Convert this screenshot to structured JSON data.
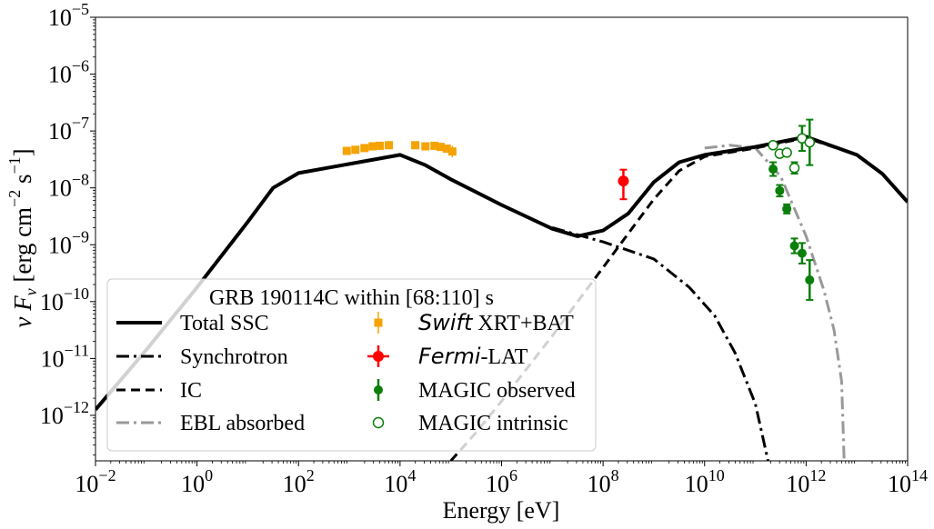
{
  "chart_data": {
    "type": "line",
    "title": "",
    "xlabel": "Energy [eV]",
    "ylabel_parts": [
      "ν",
      "F",
      "ν",
      " [erg cm",
      "−2",
      " s",
      "−1",
      "]"
    ],
    "xscale": "log",
    "yscale": "log",
    "xlim_log10": [
      -2,
      14
    ],
    "ylim_log10": [
      -12.8,
      -5
    ],
    "x_ticks": [
      {
        "exp": -2,
        "base": "10",
        "sup": "−2"
      },
      {
        "exp": 0,
        "base": "10",
        "sup": "0"
      },
      {
        "exp": 2,
        "base": "10",
        "sup": "2"
      },
      {
        "exp": 4,
        "base": "10",
        "sup": "4"
      },
      {
        "exp": 6,
        "base": "10",
        "sup": "6"
      },
      {
        "exp": 8,
        "base": "10",
        "sup": "8"
      },
      {
        "exp": 10,
        "base": "10",
        "sup": "10"
      },
      {
        "exp": 12,
        "base": "10",
        "sup": "12"
      },
      {
        "exp": 14,
        "base": "10",
        "sup": "14"
      }
    ],
    "y_ticks": [
      {
        "exp": -12,
        "base": "10",
        "sup": "−12"
      },
      {
        "exp": -11,
        "base": "10",
        "sup": "−11"
      },
      {
        "exp": -10,
        "base": "10",
        "sup": "−10"
      },
      {
        "exp": -9,
        "base": "10",
        "sup": "−9"
      },
      {
        "exp": -8,
        "base": "10",
        "sup": "−8"
      },
      {
        "exp": -7,
        "base": "10",
        "sup": "−7"
      },
      {
        "exp": -6,
        "base": "10",
        "sup": "−6"
      },
      {
        "exp": -5,
        "base": "10",
        "sup": "−5"
      }
    ],
    "legend": {
      "title": "GRB 190114C within [68:110] s",
      "placement": "lower-left",
      "entries": [
        {
          "label": "Total SSC"
        },
        {
          "label": "Synchrotron"
        },
        {
          "label": "IC"
        },
        {
          "label": "EBL absorbed"
        },
        {
          "label_italic": "Swift",
          "label": " XRT+BAT"
        },
        {
          "label_italic": "Fermi",
          "label": "-LAT"
        },
        {
          "label": "MAGIC observed"
        },
        {
          "label": "MAGIC intrinsic"
        }
      ]
    },
    "series": [
      {
        "name": "Total SSC",
        "style": "solid",
        "color": "#000000",
        "points_log10": [
          [
            -2,
            -11.9
          ],
          [
            -1,
            -10.85
          ],
          [
            0,
            -9.75
          ],
          [
            1,
            -8.6
          ],
          [
            1.5,
            -8.0
          ],
          [
            2,
            -7.74
          ],
          [
            3,
            -7.58
          ],
          [
            4,
            -7.42
          ],
          [
            4.5,
            -7.6
          ],
          [
            5,
            -7.85
          ],
          [
            6,
            -8.3
          ],
          [
            7,
            -8.72
          ],
          [
            7.5,
            -8.85
          ],
          [
            8,
            -8.75
          ],
          [
            8.5,
            -8.45
          ],
          [
            9,
            -7.9
          ],
          [
            9.5,
            -7.55
          ],
          [
            10,
            -7.42
          ],
          [
            11,
            -7.28
          ],
          [
            12,
            -7.1
          ],
          [
            13,
            -7.42
          ],
          [
            13.5,
            -7.75
          ],
          [
            14,
            -8.25
          ]
        ]
      },
      {
        "name": "Synchrotron",
        "style": "dashdot",
        "color": "#000000",
        "points_log10": [
          [
            7,
            -8.7
          ],
          [
            8,
            -8.95
          ],
          [
            9,
            -9.25
          ],
          [
            9.7,
            -9.75
          ],
          [
            10.2,
            -10.25
          ],
          [
            10.6,
            -10.9
          ],
          [
            11,
            -11.8
          ],
          [
            11.25,
            -12.8
          ]
        ]
      },
      {
        "name": "IC",
        "style": "dashed",
        "color": "#000000",
        "points_log10": [
          [
            5,
            -12.8
          ],
          [
            5.5,
            -12.3
          ],
          [
            6,
            -11.75
          ],
          [
            7,
            -10.6
          ],
          [
            7.5,
            -10.0
          ],
          [
            8,
            -9.4
          ],
          [
            8.5,
            -8.8
          ],
          [
            9,
            -8.2
          ],
          [
            9.5,
            -7.7
          ],
          [
            10,
            -7.45
          ],
          [
            11,
            -7.3
          ],
          [
            12,
            -7.12
          ],
          [
            13,
            -7.42
          ],
          [
            13.5,
            -7.75
          ],
          [
            14,
            -8.25
          ]
        ]
      },
      {
        "name": "EBL absorbed",
        "style": "dashdot",
        "color": "#999999",
        "points_log10": [
          [
            10,
            -7.3
          ],
          [
            10.5,
            -7.25
          ],
          [
            11,
            -7.3
          ],
          [
            11.5,
            -7.8
          ],
          [
            12,
            -8.85
          ],
          [
            12.35,
            -9.8
          ],
          [
            12.55,
            -10.5
          ],
          [
            12.7,
            -11.4
          ],
          [
            12.75,
            -12.8
          ]
        ]
      }
    ],
    "errorbar_series": [
      {
        "name": "Swift XRT+BAT",
        "marker": "square",
        "color": "#f5a300",
        "points": [
          {
            "x": 2.95,
            "y": -7.35,
            "yerr": 0.05
          },
          {
            "x": 3.12,
            "y": -7.33,
            "yerr": 0.05
          },
          {
            "x": 3.3,
            "y": -7.3,
            "yerr": 0.05
          },
          {
            "x": 3.46,
            "y": -7.27,
            "yerr": 0.05
          },
          {
            "x": 3.6,
            "y": -7.26,
            "yerr": 0.05
          },
          {
            "x": 3.78,
            "y": -7.25,
            "yerr": 0.05
          },
          {
            "x": 4.3,
            "y": -7.25,
            "yerr": 0.05
          },
          {
            "x": 4.5,
            "y": -7.27,
            "yerr": 0.05
          },
          {
            "x": 4.68,
            "y": -7.26,
            "yerr": 0.05
          },
          {
            "x": 4.8,
            "y": -7.28,
            "yerr": 0.06
          },
          {
            "x": 4.92,
            "y": -7.31,
            "yerr": 0.07
          },
          {
            "x": 5.03,
            "y": -7.36,
            "yerr": 0.1
          }
        ]
      },
      {
        "name": "Fermi-LAT",
        "marker": "circle",
        "color": "#ff0000",
        "points": [
          {
            "x": 8.4,
            "y": -7.88,
            "yerr_lo": 0.32,
            "yerr_hi": 0.2,
            "xerr": 0.1
          }
        ]
      },
      {
        "name": "MAGIC observed",
        "marker": "circle",
        "color": "#0a7f0a",
        "points": [
          {
            "x": 11.35,
            "y": -7.67,
            "yerr": 0.12
          },
          {
            "x": 11.48,
            "y": -8.05,
            "yerr": 0.1
          },
          {
            "x": 11.62,
            "y": -8.37,
            "yerr": 0.08
          },
          {
            "x": 11.77,
            "y": -9.02,
            "yerr": 0.13
          },
          {
            "x": 11.92,
            "y": -9.15,
            "yerr": 0.18
          },
          {
            "x": 12.07,
            "y": -9.62,
            "yerr": 0.35
          }
        ]
      },
      {
        "name": "MAGIC intrinsic",
        "marker": "circle-open",
        "color": "#0a7f0a",
        "points": [
          {
            "x": 11.35,
            "y": -7.25,
            "yerr": 0.0
          },
          {
            "x": 11.48,
            "y": -7.4,
            "yerr": 0.0
          },
          {
            "x": 11.62,
            "y": -7.38,
            "yerr": 0.0
          },
          {
            "x": 11.77,
            "y": -7.65,
            "yerr": 0.1
          },
          {
            "x": 11.92,
            "y": -7.13,
            "yerr": 0.22
          },
          {
            "x": 12.07,
            "y": -7.2,
            "yerr": 0.4
          }
        ]
      }
    ]
  }
}
